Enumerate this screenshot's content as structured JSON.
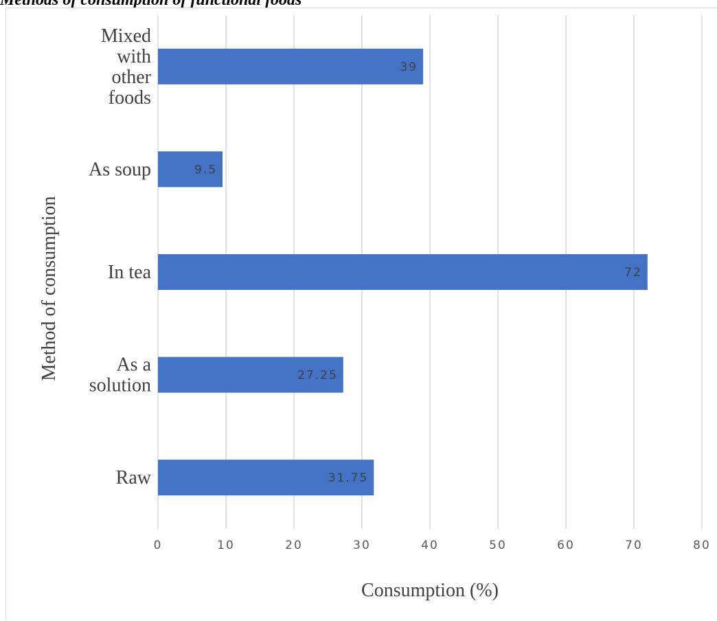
{
  "chart_data": {
    "type": "bar",
    "orientation": "horizontal",
    "title": "Methods of consumption of functional foods",
    "xlabel": "Consumption (%)",
    "ylabel": "Method of consumption",
    "categories": [
      "Raw",
      "As a solution",
      "In tea",
      "As soup",
      "Mixed with other foods"
    ],
    "category_lines": [
      [
        "Raw"
      ],
      [
        "As a",
        "solution"
      ],
      [
        "In tea"
      ],
      [
        "As soup"
      ],
      [
        "Mixed",
        "with",
        "other",
        "foods"
      ]
    ],
    "values": [
      31.75,
      27.25,
      72,
      9.5,
      39
    ],
    "value_labels": [
      "31.75",
      "27.25",
      "72",
      "9.5",
      "39"
    ],
    "xlim": [
      0,
      80
    ],
    "xticks": [
      "0",
      "10",
      "20",
      "30",
      "40",
      "50",
      "60",
      "70",
      "80"
    ],
    "grid": true,
    "legend": "none",
    "bar_color": "#4472c4"
  }
}
